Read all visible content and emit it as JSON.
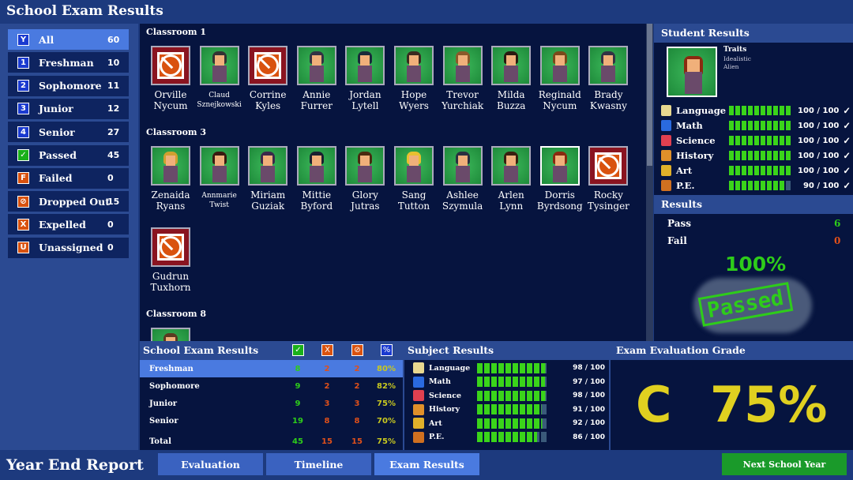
{
  "title": "School Exam Results",
  "colors": {
    "pass": "#2ecc1a",
    "fail": "#e0501a",
    "percent": "#c8c820",
    "accent": "#4a7ae0"
  },
  "sidebar": {
    "items": [
      {
        "label": "All",
        "count": "60",
        "icon": "Y",
        "icon_color": "#1a3ad0",
        "selected": true
      },
      {
        "label": "Freshman",
        "count": "10",
        "icon": "1",
        "icon_color": "#1a3ad0"
      },
      {
        "label": "Sophomore",
        "count": "11",
        "icon": "2",
        "icon_color": "#1a3ad0"
      },
      {
        "label": "Junior",
        "count": "12",
        "icon": "3",
        "icon_color": "#1a3ad0"
      },
      {
        "label": "Senior",
        "count": "27",
        "icon": "4",
        "icon_color": "#1a3ad0"
      },
      {
        "label": "Passed",
        "count": "45",
        "icon": "✓",
        "icon_color": "#1ab01a"
      },
      {
        "label": "Failed",
        "count": "0",
        "icon": "F",
        "icon_color": "#d9520f"
      },
      {
        "label": "Dropped Out",
        "count": "15",
        "icon": "⊘",
        "icon_color": "#d9520f"
      },
      {
        "label": "Expelled",
        "count": "0",
        "icon": "X",
        "icon_color": "#d9520f"
      },
      {
        "label": "Unassigned",
        "count": "0",
        "icon": "U",
        "icon_color": "#d9520f"
      }
    ]
  },
  "classrooms": [
    {
      "name": "Classroom 1",
      "students": [
        {
          "first": "Orville",
          "last": "Nycum",
          "status": "dropped"
        },
        {
          "first": "Claud",
          "last": "Sznejkowski",
          "status": "ok",
          "small": true,
          "hair": "#333"
        },
        {
          "first": "Corrine",
          "last": "Kyles",
          "status": "dropped"
        },
        {
          "first": "Annie",
          "last": "Furrer",
          "status": "ok",
          "hair": "#334"
        },
        {
          "first": "Jordan",
          "last": "Lytell",
          "status": "ok",
          "hair": "#1a2a3a"
        },
        {
          "first": "Hope",
          "last": "Wyers",
          "status": "ok",
          "hair": "#3a2a20"
        },
        {
          "first": "Trevor",
          "last": "Yurchiak",
          "status": "ok",
          "hair": "#8a5a2a"
        },
        {
          "first": "Milda",
          "last": "Buzza",
          "status": "ok",
          "hair": "#2a1a10"
        },
        {
          "first": "Reginald",
          "last": "Nycum",
          "status": "ok",
          "hair": "#7a4a1a"
        },
        {
          "first": "Brady",
          "last": "Kwasny",
          "status": "ok",
          "hair": "#334"
        }
      ]
    },
    {
      "name": "Classroom 3",
      "students": [
        {
          "first": "Zenaida",
          "last": "Ryans",
          "status": "ok",
          "hair": "#d0a030"
        },
        {
          "first": "Annmarie",
          "last": "Twist",
          "status": "ok",
          "small": true,
          "hair": "#3a1a10"
        },
        {
          "first": "Miriam",
          "last": "Guziak",
          "status": "ok",
          "hair": "#3a2a4a"
        },
        {
          "first": "Mittie",
          "last": "Byford",
          "status": "ok",
          "hair": "#1a2030"
        },
        {
          "first": "Glory",
          "last": "Jutras",
          "status": "ok",
          "hair": "#4a2a10"
        },
        {
          "first": "Sang",
          "last": "Tutton",
          "status": "ok",
          "hair": "#e8c030"
        },
        {
          "first": "Ashlee",
          "last": "Szymula",
          "status": "ok",
          "hair": "#2a3040"
        },
        {
          "first": "Arlen",
          "last": "Lynn",
          "status": "ok",
          "hair": "#3a2010"
        },
        {
          "first": "Dorris",
          "last": "Byrdsong",
          "status": "ok",
          "selected": true,
          "small": false,
          "hair": "#8a2a10"
        },
        {
          "first": "Rocky",
          "last": "Tysinger",
          "status": "dropped"
        },
        {
          "first": "Gudrun",
          "last": "Tuxhorn",
          "status": "dropped"
        }
      ]
    },
    {
      "name": "Classroom 8",
      "students": [
        {
          "first": "",
          "last": "",
          "status": "ok",
          "hair": "#5a3a20"
        }
      ]
    }
  ],
  "student": {
    "header": "Student Results",
    "traits_label": "Traits",
    "traits": [
      "Idealistic",
      "Alien"
    ],
    "subjects": [
      {
        "name": "Language",
        "score": "100 / 100",
        "value": 100,
        "icon": "book-icon",
        "icon_color": "#e8d890"
      },
      {
        "name": "Math",
        "score": "100 / 100",
        "value": 100,
        "icon": "math-icon",
        "icon_color": "#2a6ae0"
      },
      {
        "name": "Science",
        "score": "100 / 100",
        "value": 100,
        "icon": "flask-icon",
        "icon_color": "#e04050"
      },
      {
        "name": "History",
        "score": "100 / 100",
        "value": 100,
        "icon": "globe-icon",
        "icon_color": "#e0902a"
      },
      {
        "name": "Art",
        "score": "100 / 100",
        "value": 100,
        "icon": "easel-icon",
        "icon_color": "#e0b02a"
      },
      {
        "name": "P.E.",
        "score": "90 / 100",
        "value": 90,
        "icon": "basketball-icon",
        "icon_color": "#d07020"
      }
    ],
    "check": "✓"
  },
  "results": {
    "header": "Results",
    "pass_label": "Pass",
    "pass": "6",
    "fail_label": "Fail",
    "fail": "0",
    "percent": "100%",
    "stamp": "Passed"
  },
  "table": {
    "header": "School Exam Results",
    "cols": [
      "✓",
      "X",
      "⊘",
      "%"
    ],
    "rows": [
      {
        "label": "Freshman",
        "pass": "8",
        "fail": "2",
        "drop": "2",
        "pct": "80%",
        "selected": true
      },
      {
        "label": "Sophomore",
        "pass": "9",
        "fail": "2",
        "drop": "2",
        "pct": "82%"
      },
      {
        "label": "Junior",
        "pass": "9",
        "fail": "3",
        "drop": "3",
        "pct": "75%"
      },
      {
        "label": "Senior",
        "pass": "19",
        "fail": "8",
        "drop": "8",
        "pct": "70%"
      },
      {
        "label": "Total",
        "pass": "45",
        "fail": "15",
        "drop": "15",
        "pct": "75%"
      }
    ]
  },
  "subject_results": {
    "header": "Subject Results",
    "subjects": [
      {
        "name": "Language",
        "score": "98 / 100",
        "value": 98,
        "icon_color": "#e8d890"
      },
      {
        "name": "Math",
        "score": "97 / 100",
        "value": 97,
        "icon_color": "#2a6ae0"
      },
      {
        "name": "Science",
        "score": "98 / 100",
        "value": 98,
        "icon_color": "#e04050"
      },
      {
        "name": "History",
        "score": "91 / 100",
        "value": 91,
        "icon_color": "#e0902a"
      },
      {
        "name": "Art",
        "score": "92 / 100",
        "value": 92,
        "icon_color": "#e0b02a"
      },
      {
        "name": "P.E.",
        "score": "86 / 100",
        "value": 86,
        "icon_color": "#d07020"
      }
    ]
  },
  "grade": {
    "header": "Exam Evaluation Grade",
    "letter": "C",
    "percent": "75%"
  },
  "footer": {
    "title": "Year End Report",
    "tabs": [
      "Evaluation",
      "Timeline",
      "Exam Results"
    ],
    "selected_tab": 2,
    "next": "Next School Year"
  }
}
